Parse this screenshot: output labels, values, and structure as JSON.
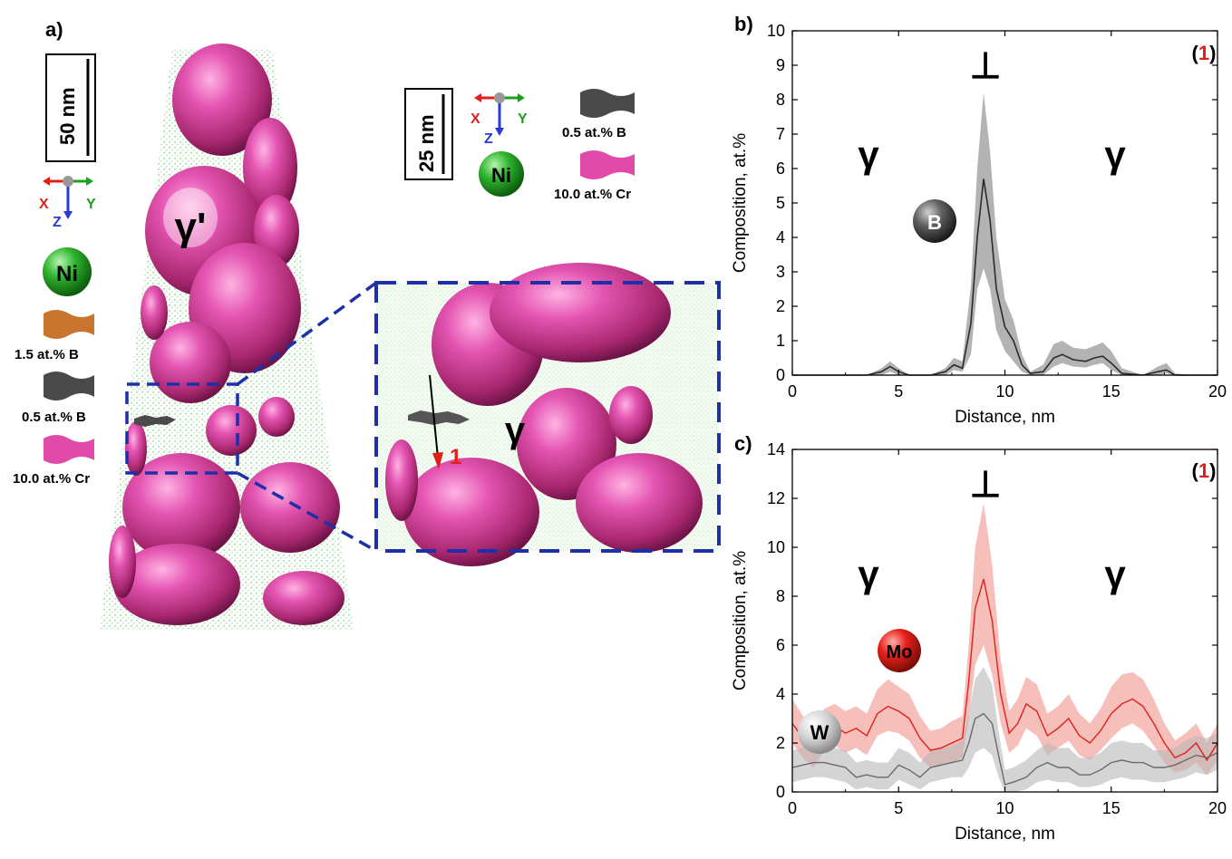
{
  "panels": {
    "a": "a)",
    "b": "b)",
    "c": "c)"
  },
  "left": {
    "scale_bar": "50 nm",
    "axes": {
      "x": "X",
      "y": "Y",
      "z": "Z"
    },
    "ni_label": "Ni",
    "gamma_prime": "γ'",
    "legend": [
      {
        "label": "1.5 at.% B",
        "color": "#c8742e"
      },
      {
        "label": "0.5 at.% B",
        "color": "#4a4a4a"
      },
      {
        "label": "10.0 at.% Cr",
        "color": "#e04aa8"
      }
    ]
  },
  "inset": {
    "scale_bar": "25 nm",
    "axes": {
      "x": "X",
      "y": "Y",
      "z": "Z"
    },
    "ni_label": "Ni",
    "legend": [
      {
        "label": "0.5 at.% B",
        "color": "#4a4a4a"
      },
      {
        "label": "10.0 at.% Cr",
        "color": "#e04aa8"
      }
    ],
    "gamma": "γ",
    "arrow_label": "1"
  },
  "colors": {
    "box": "#1f2fa8",
    "matrix_dots": "#5bbd5b",
    "precip": "#d93f9e",
    "b_series": "#3b3b3b",
    "mo_series": "#e0201a",
    "w_series": "#6e6e6e"
  },
  "chart_data": [
    {
      "type": "line",
      "panel": "b)",
      "xlabel": "Distance, nm",
      "ylabel": "Composition, at.%",
      "xlim": [
        0,
        20
      ],
      "ylim": [
        0,
        10
      ],
      "xticks": [
        0,
        5,
        10,
        15,
        20
      ],
      "yticks": [
        0,
        1,
        2,
        3,
        4,
        5,
        6,
        7,
        8,
        9,
        10
      ],
      "annotations": {
        "dislocation": "⊥",
        "gamma_left": "γ",
        "gamma_right": "γ",
        "profile_tag": "(1)",
        "element": "B"
      },
      "series": [
        {
          "name": "B",
          "x": [
            0,
            2,
            3.5,
            4.2,
            4.6,
            5.0,
            5.5,
            6.5,
            7.2,
            7.6,
            8.0,
            8.4,
            8.7,
            9.0,
            9.3,
            9.6,
            10.0,
            10.4,
            10.8,
            11.2,
            11.8,
            12.3,
            12.7,
            13.2,
            13.8,
            14.2,
            14.6,
            15.0,
            15.5,
            16.5,
            17.2,
            17.6,
            18.0,
            19.0,
            20.0
          ],
          "y": [
            0,
            0,
            0,
            0.1,
            0.25,
            0.1,
            0,
            0,
            0.1,
            0.3,
            0.2,
            1.5,
            4.0,
            5.7,
            4.5,
            2.5,
            1.4,
            1.0,
            0.3,
            0.05,
            0.1,
            0.5,
            0.6,
            0.45,
            0.4,
            0.5,
            0.55,
            0.35,
            0.05,
            0,
            0.1,
            0.15,
            0,
            0,
            0
          ],
          "lower": [
            0,
            0,
            0,
            0,
            0.1,
            0,
            0,
            0,
            0,
            0.15,
            0.1,
            0.6,
            2.5,
            3.1,
            2.5,
            1.3,
            0.7,
            0.4,
            0.1,
            0,
            0,
            0.25,
            0.35,
            0.25,
            0.22,
            0.3,
            0.35,
            0.15,
            0,
            0,
            0,
            0.05,
            0,
            0,
            0
          ],
          "upper": [
            0,
            0,
            0,
            0.2,
            0.4,
            0.2,
            0,
            0,
            0.2,
            0.5,
            0.4,
            2.6,
            6.0,
            8.2,
            6.5,
            4.0,
            2.2,
            1.6,
            0.6,
            0.1,
            0.3,
            0.9,
            1.0,
            0.8,
            0.75,
            0.85,
            0.95,
            0.7,
            0.2,
            0,
            0.25,
            0.35,
            0.05,
            0,
            0
          ]
        }
      ]
    },
    {
      "type": "line",
      "panel": "c)",
      "xlabel": "Distance, nm",
      "ylabel": "Composition, at.%",
      "xlim": [
        0,
        20
      ],
      "ylim": [
        0,
        14
      ],
      "xticks": [
        0,
        5,
        10,
        15,
        20
      ],
      "yticks": [
        0,
        2,
        4,
        6,
        8,
        10,
        12,
        14
      ],
      "annotations": {
        "dislocation": "⊥",
        "gamma_left": "γ",
        "gamma_right": "γ",
        "profile_tag": "(1)",
        "element_mo": "Mo",
        "element_w": "W"
      },
      "series": [
        {
          "name": "Mo",
          "x": [
            0,
            0.5,
            1.0,
            1.5,
            2.0,
            2.5,
            3.0,
            3.5,
            4.0,
            4.5,
            5.0,
            5.5,
            6.0,
            6.5,
            7.0,
            7.5,
            8.0,
            8.3,
            8.6,
            9.0,
            9.4,
            9.8,
            10.2,
            10.6,
            11.0,
            11.5,
            12.0,
            12.5,
            13.0,
            13.5,
            14.0,
            14.5,
            15.0,
            15.5,
            16.0,
            16.5,
            17.0,
            17.5,
            18.0,
            18.5,
            19.0,
            19.5,
            20.0
          ],
          "y": [
            2.8,
            2.2,
            1.8,
            2.5,
            2.7,
            2.4,
            2.6,
            2.3,
            3.2,
            3.5,
            3.3,
            3.0,
            2.2,
            1.7,
            1.8,
            2.0,
            2.2,
            4.5,
            7.5,
            8.7,
            7.0,
            4.0,
            2.4,
            2.8,
            3.6,
            3.3,
            2.3,
            2.6,
            3.0,
            2.3,
            2.0,
            2.5,
            3.2,
            3.6,
            3.8,
            3.5,
            2.8,
            2.0,
            1.4,
            1.6,
            2.0,
            1.3,
            2.0
          ],
          "lower": [
            2.0,
            1.4,
            1.0,
            1.7,
            1.9,
            1.6,
            1.8,
            1.5,
            2.3,
            2.5,
            2.4,
            2.1,
            1.4,
            1.0,
            1.1,
            1.2,
            1.4,
            3.0,
            5.2,
            6.0,
            4.8,
            2.8,
            1.6,
            1.9,
            2.6,
            2.3,
            1.5,
            1.8,
            2.1,
            1.5,
            1.3,
            1.7,
            2.2,
            2.6,
            2.8,
            2.5,
            1.9,
            1.2,
            0.8,
            0.9,
            1.2,
            0.7,
            1.3
          ],
          "upper": [
            3.8,
            3.1,
            2.7,
            3.4,
            3.6,
            3.3,
            3.5,
            3.2,
            4.2,
            4.6,
            4.3,
            4.0,
            3.1,
            2.5,
            2.6,
            2.9,
            3.1,
            6.0,
            10.0,
            11.8,
            9.3,
            5.4,
            3.3,
            3.8,
            4.7,
            4.4,
            3.2,
            3.5,
            4.0,
            3.2,
            2.8,
            3.4,
            4.3,
            4.8,
            4.9,
            4.6,
            3.8,
            2.8,
            2.1,
            2.4,
            2.8,
            2.0,
            2.8
          ]
        },
        {
          "name": "W",
          "x": [
            0,
            0.5,
            1.0,
            1.5,
            2.0,
            2.5,
            3.0,
            3.5,
            4.0,
            4.5,
            5.0,
            5.5,
            6.0,
            6.5,
            7.0,
            7.5,
            8.0,
            8.3,
            8.6,
            9.0,
            9.4,
            9.7,
            10.0,
            10.4,
            11.0,
            11.5,
            12.0,
            12.5,
            13.0,
            13.5,
            14.0,
            14.5,
            15.0,
            15.5,
            16.0,
            16.5,
            17.0,
            17.5,
            18.0,
            18.5,
            19.0,
            19.5,
            20.0
          ],
          "y": [
            1.0,
            1.1,
            1.2,
            1.2,
            1.1,
            1.0,
            0.6,
            0.7,
            0.6,
            0.6,
            1.1,
            0.9,
            0.6,
            1.0,
            1.1,
            1.2,
            1.3,
            2.0,
            3.0,
            3.2,
            2.8,
            1.5,
            0.3,
            0.4,
            0.6,
            1.0,
            1.2,
            1.0,
            1.0,
            0.7,
            0.7,
            0.9,
            1.2,
            1.3,
            1.2,
            1.2,
            1.0,
            1.0,
            1.1,
            1.3,
            1.5,
            1.4,
            1.6
          ],
          "lower": [
            0.4,
            0.5,
            0.6,
            0.6,
            0.5,
            0.4,
            0.1,
            0.2,
            0.1,
            0.1,
            0.5,
            0.3,
            0.1,
            0.4,
            0.5,
            0.6,
            0.6,
            1.0,
            1.6,
            1.8,
            1.5,
            0.6,
            0.0,
            0.0,
            0.1,
            0.4,
            0.5,
            0.4,
            0.4,
            0.2,
            0.2,
            0.3,
            0.5,
            0.6,
            0.5,
            0.5,
            0.4,
            0.4,
            0.5,
            0.6,
            0.8,
            0.7,
            0.9
          ],
          "upper": [
            1.7,
            1.8,
            1.9,
            1.9,
            1.8,
            1.7,
            1.2,
            1.3,
            1.2,
            1.2,
            1.8,
            1.6,
            1.2,
            1.7,
            1.8,
            1.9,
            2.1,
            3.2,
            4.6,
            5.1,
            4.4,
            2.5,
            0.9,
            1.0,
            1.3,
            1.7,
            2.0,
            1.8,
            1.8,
            1.4,
            1.4,
            1.6,
            2.0,
            2.1,
            2.0,
            2.0,
            1.7,
            1.7,
            1.8,
            2.1,
            2.3,
            2.2,
            2.4
          ]
        }
      ]
    }
  ]
}
